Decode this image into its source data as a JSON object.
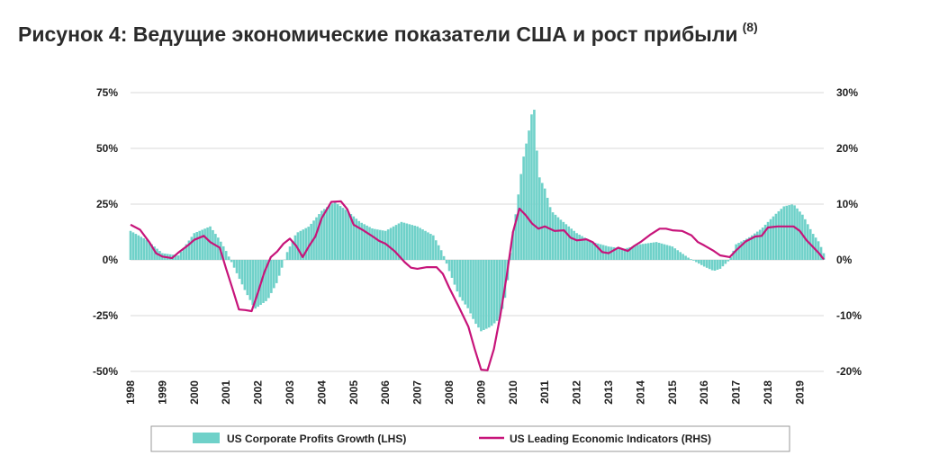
{
  "title": "Рисунок 4: Ведущие экономические показатели США и рост прибыли",
  "title_sup": "(8)",
  "chart_data": {
    "type": "bar+line",
    "x_start": 1998.0,
    "x_end": 2019.75,
    "x_tick_labels": [
      "1998",
      "1999",
      "2000",
      "2001",
      "2002",
      "2003",
      "2004",
      "2005",
      "2006",
      "2007",
      "2008",
      "2009",
      "2010",
      "2011",
      "2012",
      "2013",
      "2014",
      "2015",
      "2016",
      "2017",
      "2018",
      "2019"
    ],
    "left_axis": {
      "ticks": [
        "75%",
        "50%",
        "25%",
        "0%",
        "-25%",
        "-50%"
      ],
      "ylim": [
        -50,
        75
      ]
    },
    "right_axis": {
      "ticks": [
        "30%",
        "20%",
        "10%",
        "0%",
        "-10%",
        "-20%"
      ],
      "ylim": [
        -20,
        30
      ]
    },
    "grid": true,
    "legend_position": "bottom",
    "series": [
      {
        "name": "US Corporate Profits Growth (LHS)",
        "kind": "bar",
        "axis": "left",
        "color": "#6fd1c9",
        "points": [
          [
            1998,
            13
          ],
          [
            1998.5,
            9
          ],
          [
            1999,
            3
          ],
          [
            1999.5,
            2
          ],
          [
            2000,
            12
          ],
          [
            2000.5,
            15
          ],
          [
            2000.8,
            9
          ],
          [
            2001,
            4
          ],
          [
            2001.3,
            -5
          ],
          [
            2001.6,
            -14
          ],
          [
            2001.9,
            -22
          ],
          [
            2002.3,
            -18
          ],
          [
            2002.6,
            -10
          ],
          [
            2002.9,
            3
          ],
          [
            2003.2,
            12
          ],
          [
            2003.6,
            15
          ],
          [
            2004,
            22
          ],
          [
            2004.4,
            26
          ],
          [
            2004.8,
            22
          ],
          [
            2005.2,
            17
          ],
          [
            2005.6,
            14
          ],
          [
            2006,
            13
          ],
          [
            2006.5,
            17
          ],
          [
            2007,
            15
          ],
          [
            2007.5,
            11
          ],
          [
            2007.8,
            3
          ],
          [
            2008,
            -5
          ],
          [
            2008.3,
            -16
          ],
          [
            2008.6,
            -22
          ],
          [
            2008.8,
            -28
          ],
          [
            2009,
            -32
          ],
          [
            2009.3,
            -30
          ],
          [
            2009.6,
            -26
          ],
          [
            2009.8,
            -14
          ],
          [
            2009.95,
            8
          ],
          [
            2010.1,
            22
          ],
          [
            2010.3,
            44
          ],
          [
            2010.5,
            58
          ],
          [
            2010.65,
            71
          ],
          [
            2010.8,
            38
          ],
          [
            2011,
            32
          ],
          [
            2011.2,
            22
          ],
          [
            2011.5,
            18
          ],
          [
            2012,
            12
          ],
          [
            2012.5,
            8
          ],
          [
            2013,
            6
          ],
          [
            2013.5,
            5
          ],
          [
            2014,
            7
          ],
          [
            2014.5,
            8
          ],
          [
            2015,
            6
          ],
          [
            2015.5,
            1
          ],
          [
            2016,
            -3
          ],
          [
            2016.3,
            -5
          ],
          [
            2016.5,
            -4
          ],
          [
            2016.8,
            0
          ],
          [
            2017,
            7
          ],
          [
            2017.4,
            10
          ],
          [
            2017.8,
            14
          ],
          [
            2018.2,
            20
          ],
          [
            2018.5,
            24
          ],
          [
            2018.8,
            25
          ],
          [
            2019.1,
            20
          ],
          [
            2019.4,
            12
          ],
          [
            2019.6,
            8
          ],
          [
            2019.75,
            3
          ]
        ]
      },
      {
        "name": "US Leading Economic Indicators (RHS)",
        "kind": "line",
        "axis": "right",
        "color": "#c7147a",
        "points": [
          [
            1998,
            6.3
          ],
          [
            1998.3,
            5.4
          ],
          [
            1998.6,
            3.1
          ],
          [
            1998.8,
            1.2
          ],
          [
            1999,
            0.6
          ],
          [
            1999.3,
            0.3
          ],
          [
            1999.5,
            1.3
          ],
          [
            1999.8,
            2.6
          ],
          [
            2000,
            3.6
          ],
          [
            2000.3,
            4.3
          ],
          [
            2000.5,
            3.2
          ],
          [
            2000.8,
            2.2
          ],
          [
            2001,
            -1.6
          ],
          [
            2001.2,
            -5.2
          ],
          [
            2001.4,
            -8.9
          ],
          [
            2001.6,
            -9
          ],
          [
            2001.8,
            -9.2
          ],
          [
            2002,
            -5.8
          ],
          [
            2002.2,
            -2.2
          ],
          [
            2002.4,
            0.5
          ],
          [
            2002.6,
            1.5
          ],
          [
            2002.8,
            2.9
          ],
          [
            2003,
            3.8
          ],
          [
            2003.2,
            2.5
          ],
          [
            2003.4,
            0.5
          ],
          [
            2003.6,
            2.5
          ],
          [
            2003.8,
            4.2
          ],
          [
            2004,
            7.5
          ],
          [
            2004.3,
            10.4
          ],
          [
            2004.6,
            10.5
          ],
          [
            2004.8,
            9.1
          ],
          [
            2005,
            6.3
          ],
          [
            2005.3,
            5.3
          ],
          [
            2005.6,
            4.2
          ],
          [
            2005.8,
            3.4
          ],
          [
            2006,
            2.9
          ],
          [
            2006.3,
            1.5
          ],
          [
            2006.6,
            -0.4
          ],
          [
            2006.8,
            -1.4
          ],
          [
            2007,
            -1.6
          ],
          [
            2007.3,
            -1.3
          ],
          [
            2007.6,
            -1.3
          ],
          [
            2007.8,
            -2.5
          ],
          [
            2008,
            -5
          ],
          [
            2008.3,
            -8.4
          ],
          [
            2008.6,
            -12
          ],
          [
            2008.8,
            -16
          ],
          [
            2009,
            -19.7
          ],
          [
            2009.2,
            -19.8
          ],
          [
            2009.4,
            -16
          ],
          [
            2009.6,
            -10
          ],
          [
            2009.8,
            -3
          ],
          [
            2010,
            5
          ],
          [
            2010.2,
            9.2
          ],
          [
            2010.4,
            8
          ],
          [
            2010.6,
            6.5
          ],
          [
            2010.8,
            5.6
          ],
          [
            2011,
            6
          ],
          [
            2011.3,
            5.2
          ],
          [
            2011.6,
            5.3
          ],
          [
            2011.8,
            4
          ],
          [
            2012,
            3.5
          ],
          [
            2012.3,
            3.7
          ],
          [
            2012.5,
            3.2
          ],
          [
            2012.8,
            1.4
          ],
          [
            2013,
            1.2
          ],
          [
            2013.3,
            2.2
          ],
          [
            2013.6,
            1.6
          ],
          [
            2013.8,
            2.5
          ],
          [
            2014,
            3.2
          ],
          [
            2014.3,
            4.5
          ],
          [
            2014.6,
            5.6
          ],
          [
            2014.8,
            5.6
          ],
          [
            2015,
            5.3
          ],
          [
            2015.3,
            5.2
          ],
          [
            2015.6,
            4.4
          ],
          [
            2015.8,
            3.2
          ],
          [
            2016,
            2.6
          ],
          [
            2016.3,
            1.6
          ],
          [
            2016.5,
            0.8
          ],
          [
            2016.8,
            0.5
          ],
          [
            2017,
            1.7
          ],
          [
            2017.3,
            3.3
          ],
          [
            2017.6,
            4.2
          ],
          [
            2017.8,
            4.3
          ],
          [
            2018,
            5.8
          ],
          [
            2018.3,
            6
          ],
          [
            2018.6,
            6
          ],
          [
            2018.8,
            6
          ],
          [
            2019,
            5.2
          ],
          [
            2019.2,
            3.6
          ],
          [
            2019.4,
            2.4
          ],
          [
            2019.6,
            1.2
          ],
          [
            2019.75,
            0.1
          ]
        ]
      }
    ]
  }
}
